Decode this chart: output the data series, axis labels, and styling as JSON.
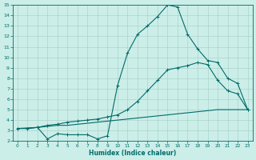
{
  "xlabel": "Humidex (Indice chaleur)",
  "bg_color": "#cceee8",
  "line_color": "#006b6b",
  "grid_color": "#aad4cc",
  "xlim": [
    -0.5,
    23.5
  ],
  "ylim": [
    2,
    15
  ],
  "xticks": [
    0,
    1,
    2,
    3,
    4,
    5,
    6,
    7,
    8,
    9,
    10,
    11,
    12,
    13,
    14,
    15,
    16,
    17,
    18,
    19,
    20,
    21,
    22,
    23
  ],
  "yticks": [
    2,
    3,
    4,
    5,
    6,
    7,
    8,
    9,
    10,
    11,
    12,
    13,
    14,
    15
  ],
  "line1_x": [
    0,
    1,
    2,
    3,
    4,
    5,
    6,
    7,
    8,
    9,
    10,
    11,
    12,
    13,
    14,
    15,
    16,
    17,
    18,
    19,
    20,
    21,
    22,
    23
  ],
  "line1_y": [
    3.2,
    3.2,
    3.3,
    3.4,
    3.5,
    3.5,
    3.6,
    3.7,
    3.8,
    3.9,
    4.0,
    4.1,
    4.2,
    4.3,
    4.4,
    4.5,
    4.6,
    4.7,
    4.8,
    4.9,
    5.0,
    5.0,
    5.0,
    5.0
  ],
  "line2_x": [
    0,
    1,
    2,
    3,
    4,
    5,
    6,
    7,
    8,
    9,
    10,
    11,
    12,
    13,
    14,
    15,
    16,
    17,
    18,
    19,
    20,
    21,
    22,
    23
  ],
  "line2_y": [
    3.2,
    3.2,
    3.3,
    3.5,
    3.6,
    3.8,
    3.9,
    4.0,
    4.1,
    4.3,
    4.5,
    5.0,
    5.8,
    6.8,
    7.8,
    8.8,
    9.0,
    9.2,
    9.5,
    9.3,
    7.8,
    6.8,
    6.5,
    5.0
  ],
  "line3_x": [
    0,
    2,
    3,
    4,
    5,
    6,
    7,
    8,
    9,
    10,
    11,
    12,
    13,
    14,
    15,
    16,
    17,
    18,
    19,
    20,
    21,
    22,
    23
  ],
  "line3_y": [
    3.2,
    3.3,
    2.2,
    2.7,
    2.6,
    2.6,
    2.6,
    2.2,
    2.5,
    7.3,
    10.4,
    12.2,
    13.0,
    13.9,
    15.0,
    14.8,
    12.2,
    10.8,
    9.7,
    9.5,
    8.0,
    7.5,
    5.0
  ],
  "linewidth": 0.8,
  "markersize": 2.5
}
